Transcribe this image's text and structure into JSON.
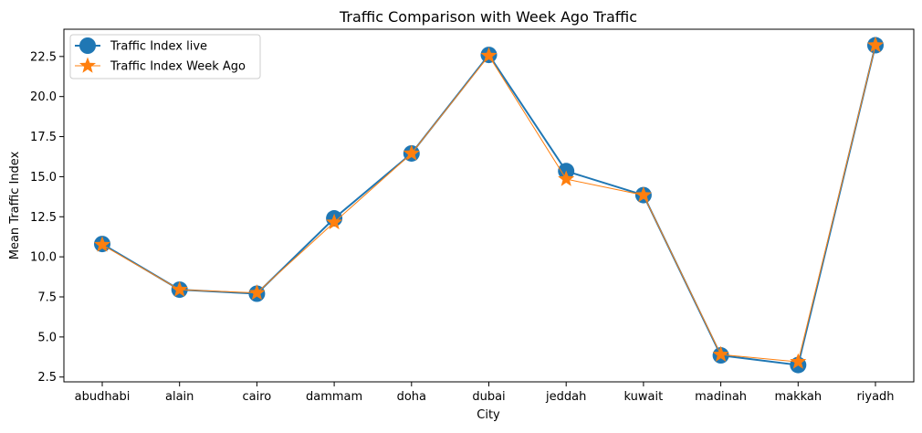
{
  "chart_data": {
    "type": "line",
    "title": "Traffic Comparison with Week Ago Traffic",
    "xlabel": "City",
    "ylabel": "Mean Traffic Index",
    "categories": [
      "abudhabi",
      "alain",
      "cairo",
      "dammam",
      "doha",
      "dubai",
      "jeddah",
      "kuwait",
      "madinah",
      "makkah",
      "riyadh"
    ],
    "series": [
      {
        "name": "Traffic Index live",
        "values": [
          10.8,
          7.95,
          7.7,
          12.4,
          16.45,
          22.6,
          15.35,
          13.85,
          3.85,
          3.25,
          23.2
        ],
        "color": "#1f77b4",
        "marker": "circle"
      },
      {
        "name": "Traffic Index Week Ago",
        "values": [
          10.75,
          7.95,
          7.75,
          12.15,
          16.45,
          22.55,
          14.85,
          13.85,
          3.9,
          3.45,
          23.2
        ],
        "color": "#ff7f0e",
        "marker": "star"
      }
    ],
    "yticks": [
      2.5,
      5.0,
      7.5,
      10.0,
      12.5,
      15.0,
      17.5,
      20.0,
      22.5
    ],
    "ytick_labels": [
      "2.5",
      "5.0",
      "7.5",
      "10.0",
      "12.5",
      "15.0",
      "17.5",
      "20.0",
      "22.5"
    ],
    "ylim": [
      2.2,
      24.2
    ],
    "grid": false,
    "legend_position": "upper-left"
  }
}
